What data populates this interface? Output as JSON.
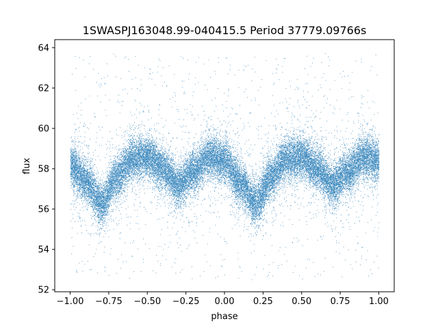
{
  "chart_data": {
    "type": "scatter",
    "title": "1SWASPJ163048.99-040415.5 Period 37779.09766s",
    "xlabel": "phase",
    "ylabel": "flux",
    "xlim": [
      -1.1,
      1.1
    ],
    "ylim": [
      51.9,
      64.4
    ],
    "x_ticks": [
      -1.0,
      -0.75,
      -0.5,
      -0.25,
      0.0,
      0.25,
      0.5,
      0.75,
      1.0
    ],
    "x_tick_labels": [
      "−1.00",
      "−0.75",
      "−0.50",
      "−0.25",
      "0.00",
      "0.25",
      "0.50",
      "0.75",
      "1.00"
    ],
    "y_ticks": [
      52,
      54,
      56,
      58,
      60,
      62,
      64
    ],
    "y_tick_labels": [
      "52",
      "54",
      "56",
      "58",
      "60",
      "62",
      "64"
    ],
    "grid": false,
    "marker_color": "#1f77b4",
    "series": [
      {
        "name": "",
        "phase_fold": {
          "x_range": [
            -1.0,
            1.0
          ],
          "period_in_phase": 1.0
        },
        "mean_curve": {
          "x": [
            -1.0,
            -0.9,
            -0.8,
            -0.7,
            -0.6,
            -0.5,
            -0.4,
            -0.3,
            -0.2,
            -0.1,
            0.0,
            0.1,
            0.2,
            0.3,
            0.4,
            0.5,
            0.6,
            0.7,
            0.8,
            0.9,
            1.0
          ],
          "y": [
            58.2,
            57.4,
            56.3,
            57.6,
            58.5,
            58.6,
            58.0,
            57.2,
            57.9,
            58.6,
            58.4,
            57.3,
            56.3,
            57.6,
            58.5,
            58.6,
            58.0,
            57.2,
            57.9,
            58.6,
            58.4
          ]
        },
        "scatter_sigma": 0.5,
        "outlier_range": [
          52.5,
          63.8
        ],
        "n_points_approx": 30000
      }
    ]
  }
}
